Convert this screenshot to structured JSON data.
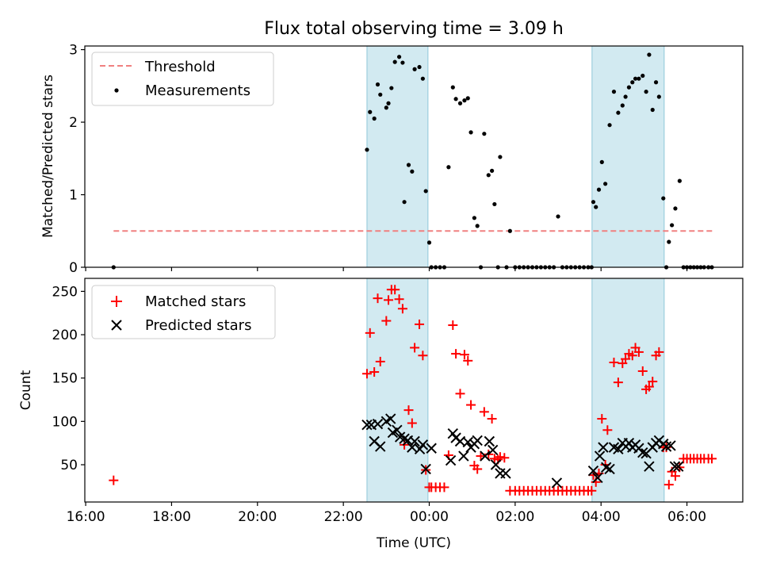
{
  "figure": {
    "title": "Flux total observing time = 3.09 h",
    "shaded_color": "#add8e6",
    "x_axis": {
      "label": "Time (UTC)",
      "range_hours": [
        15.98,
        31.3
      ],
      "ticks": [
        {
          "v": 16,
          "label": "16:00"
        },
        {
          "v": 18,
          "label": "18:00"
        },
        {
          "v": 20,
          "label": "20:00"
        },
        {
          "v": 22,
          "label": "22:00"
        },
        {
          "v": 24,
          "label": "00:00"
        },
        {
          "v": 26,
          "label": "02:00"
        },
        {
          "v": 28,
          "label": "04:00"
        },
        {
          "v": 30,
          "label": "06:00"
        }
      ],
      "shaded_spans_hours": [
        [
          22.55,
          23.97
        ],
        [
          27.79,
          29.47
        ]
      ]
    }
  },
  "chart_data": [
    {
      "type": "scatter",
      "ylabel": "Matched/Predicted stars",
      "ylim": [
        0,
        3.05
      ],
      "yticks": [
        0,
        1,
        2,
        3
      ],
      "legend": {
        "placement": "top-left",
        "entries": [
          "Threshold",
          "Measurements"
        ]
      },
      "threshold": {
        "name": "Threshold",
        "value": 0.5,
        "x_range_hours": [
          16.65,
          30.6
        ],
        "color": "#f08080"
      },
      "series": [
        {
          "name": "Measurements",
          "color": "#000000",
          "points": [
            [
              16.65,
              0.0
            ],
            [
              22.55,
              1.62
            ],
            [
              22.62,
              2.14
            ],
            [
              22.72,
              2.05
            ],
            [
              22.8,
              2.52
            ],
            [
              22.86,
              2.38
            ],
            [
              23.0,
              2.2
            ],
            [
              23.05,
              2.26
            ],
            [
              23.12,
              2.47
            ],
            [
              23.2,
              2.83
            ],
            [
              23.3,
              2.9
            ],
            [
              23.38,
              2.82
            ],
            [
              23.42,
              0.9
            ],
            [
              23.52,
              1.41
            ],
            [
              23.6,
              1.32
            ],
            [
              23.66,
              2.73
            ],
            [
              23.77,
              2.76
            ],
            [
              23.85,
              2.6
            ],
            [
              23.92,
              1.05
            ],
            [
              24.0,
              0.34
            ],
            [
              24.05,
              0.0
            ],
            [
              24.15,
              0.0
            ],
            [
              24.25,
              0.0
            ],
            [
              24.35,
              0.0
            ],
            [
              24.45,
              1.38
            ],
            [
              24.55,
              2.48
            ],
            [
              24.62,
              2.32
            ],
            [
              24.72,
              2.26
            ],
            [
              24.82,
              2.3
            ],
            [
              24.9,
              2.33
            ],
            [
              24.97,
              1.86
            ],
            [
              25.05,
              0.68
            ],
            [
              25.12,
              0.57
            ],
            [
              25.2,
              0.0
            ],
            [
              25.28,
              1.84
            ],
            [
              25.38,
              1.27
            ],
            [
              25.46,
              1.33
            ],
            [
              25.52,
              0.87
            ],
            [
              25.6,
              0.0
            ],
            [
              25.65,
              1.52
            ],
            [
              25.8,
              0.0
            ],
            [
              25.88,
              0.5
            ],
            [
              26.0,
              0.0
            ],
            [
              26.1,
              0.0
            ],
            [
              26.2,
              0.0
            ],
            [
              26.3,
              0.0
            ],
            [
              26.4,
              0.0
            ],
            [
              26.5,
              0.0
            ],
            [
              26.6,
              0.0
            ],
            [
              26.7,
              0.0
            ],
            [
              26.8,
              0.0
            ],
            [
              26.9,
              0.0
            ],
            [
              27.0,
              0.7
            ],
            [
              27.1,
              0.0
            ],
            [
              27.2,
              0.0
            ],
            [
              27.3,
              0.0
            ],
            [
              27.4,
              0.0
            ],
            [
              27.5,
              0.0
            ],
            [
              27.6,
              0.0
            ],
            [
              27.7,
              0.0
            ],
            [
              27.78,
              0.0
            ],
            [
              27.82,
              0.9
            ],
            [
              27.88,
              0.83
            ],
            [
              27.95,
              1.07
            ],
            [
              28.02,
              1.45
            ],
            [
              28.1,
              1.15
            ],
            [
              28.2,
              1.96
            ],
            [
              28.3,
              2.42
            ],
            [
              28.4,
              2.13
            ],
            [
              28.5,
              2.23
            ],
            [
              28.57,
              2.35
            ],
            [
              28.65,
              2.48
            ],
            [
              28.73,
              2.55
            ],
            [
              28.8,
              2.6
            ],
            [
              28.88,
              2.6
            ],
            [
              28.97,
              2.64
            ],
            [
              29.05,
              2.42
            ],
            [
              29.12,
              2.93
            ],
            [
              29.2,
              2.17
            ],
            [
              29.28,
              2.55
            ],
            [
              29.35,
              2.35
            ],
            [
              29.45,
              0.95
            ],
            [
              29.52,
              0.0
            ],
            [
              29.58,
              0.35
            ],
            [
              29.65,
              0.58
            ],
            [
              29.73,
              0.81
            ],
            [
              29.83,
              1.19
            ],
            [
              29.92,
              0.0
            ],
            [
              30.0,
              0.0
            ],
            [
              30.08,
              0.0
            ],
            [
              30.16,
              0.0
            ],
            [
              30.24,
              0.0
            ],
            [
              30.32,
              0.0
            ],
            [
              30.4,
              0.0
            ],
            [
              30.5,
              0.0
            ],
            [
              30.58,
              0.0
            ]
          ]
        }
      ]
    },
    {
      "type": "scatter",
      "ylabel": "Count",
      "xlabel": "Time (UTC)",
      "ylim": [
        7,
        265
      ],
      "yticks": [
        50,
        100,
        150,
        200,
        250
      ],
      "legend": {
        "placement": "top-left",
        "entries": [
          "Matched stars",
          "Predicted stars"
        ]
      },
      "series": [
        {
          "name": "Matched stars",
          "marker": "plus",
          "color": "#ff0000",
          "points": [
            [
              16.65,
              32
            ],
            [
              22.55,
              155
            ],
            [
              22.62,
              202
            ],
            [
              22.72,
              157
            ],
            [
              22.8,
              242
            ],
            [
              22.86,
              169
            ],
            [
              23.0,
              216
            ],
            [
              23.05,
              240
            ],
            [
              23.12,
              252
            ],
            [
              23.2,
              252
            ],
            [
              23.3,
              241
            ],
            [
              23.38,
              230
            ],
            [
              23.42,
              73
            ],
            [
              23.52,
              113
            ],
            [
              23.6,
              98
            ],
            [
              23.66,
              185
            ],
            [
              23.77,
              212
            ],
            [
              23.85,
              176
            ],
            [
              23.92,
              44
            ],
            [
              24.0,
              24
            ],
            [
              24.05,
              24
            ],
            [
              24.15,
              24
            ],
            [
              24.25,
              24
            ],
            [
              24.35,
              24
            ],
            [
              24.45,
              61
            ],
            [
              24.55,
              211
            ],
            [
              24.62,
              178
            ],
            [
              24.72,
              132
            ],
            [
              24.82,
              177
            ],
            [
              24.9,
              170
            ],
            [
              24.97,
              119
            ],
            [
              25.05,
              49
            ],
            [
              25.12,
              45
            ],
            [
              25.2,
              60
            ],
            [
              25.28,
              111
            ],
            [
              25.38,
              62
            ],
            [
              25.46,
              103
            ],
            [
              25.52,
              57
            ],
            [
              25.6,
              56
            ],
            [
              25.65,
              59
            ],
            [
              25.75,
              58
            ],
            [
              25.88,
              20
            ],
            [
              26.0,
              20
            ],
            [
              26.1,
              20
            ],
            [
              26.2,
              20
            ],
            [
              26.3,
              20
            ],
            [
              26.4,
              20
            ],
            [
              26.5,
              20
            ],
            [
              26.6,
              20
            ],
            [
              26.7,
              20
            ],
            [
              26.8,
              20
            ],
            [
              26.9,
              20
            ],
            [
              27.0,
              20
            ],
            [
              27.1,
              20
            ],
            [
              27.2,
              20
            ],
            [
              27.3,
              20
            ],
            [
              27.4,
              20
            ],
            [
              27.5,
              20
            ],
            [
              27.6,
              20
            ],
            [
              27.7,
              20
            ],
            [
              27.78,
              20
            ],
            [
              27.82,
              38
            ],
            [
              27.88,
              30
            ],
            [
              27.95,
              40
            ],
            [
              28.02,
              103
            ],
            [
              28.1,
              50
            ],
            [
              28.15,
              90
            ],
            [
              28.3,
              168
            ],
            [
              28.4,
              145
            ],
            [
              28.5,
              167
            ],
            [
              28.57,
              172
            ],
            [
              28.65,
              178
            ],
            [
              28.73,
              176
            ],
            [
              28.8,
              185
            ],
            [
              28.88,
              180
            ],
            [
              28.97,
              158
            ],
            [
              29.05,
              137
            ],
            [
              29.12,
              140
            ],
            [
              29.2,
              146
            ],
            [
              29.28,
              176
            ],
            [
              29.35,
              180
            ],
            [
              29.45,
              70
            ],
            [
              29.52,
              70
            ],
            [
              29.58,
              27
            ],
            [
              29.65,
              42
            ],
            [
              29.73,
              37
            ],
            [
              29.83,
              47
            ],
            [
              29.92,
              57
            ],
            [
              30.0,
              57
            ],
            [
              30.08,
              57
            ],
            [
              30.16,
              57
            ],
            [
              30.24,
              57
            ],
            [
              30.32,
              57
            ],
            [
              30.4,
              57
            ],
            [
              30.5,
              57
            ],
            [
              30.58,
              57
            ]
          ]
        },
        {
          "name": "Predicted stars",
          "marker": "x",
          "color": "#000000",
          "points": [
            [
              22.55,
              96
            ],
            [
              22.65,
              96
            ],
            [
              22.72,
              77
            ],
            [
              22.8,
              97
            ],
            [
              22.86,
              71
            ],
            [
              23.0,
              100
            ],
            [
              23.1,
              103
            ],
            [
              23.15,
              87
            ],
            [
              23.25,
              90
            ],
            [
              23.32,
              82
            ],
            [
              23.42,
              80
            ],
            [
              23.5,
              78
            ],
            [
              23.6,
              70
            ],
            [
              23.66,
              77
            ],
            [
              23.78,
              68
            ],
            [
              23.85,
              73
            ],
            [
              23.92,
              45
            ],
            [
              24.05,
              69
            ],
            [
              24.5,
              55
            ],
            [
              24.55,
              86
            ],
            [
              24.62,
              81
            ],
            [
              24.72,
              77
            ],
            [
              24.8,
              60
            ],
            [
              24.9,
              76
            ],
            [
              24.97,
              70
            ],
            [
              25.05,
              74
            ],
            [
              25.12,
              78
            ],
            [
              25.3,
              60
            ],
            [
              25.4,
              77
            ],
            [
              25.48,
              67
            ],
            [
              25.55,
              50
            ],
            [
              25.65,
              40
            ],
            [
              25.78,
              40
            ],
            [
              26.97,
              29
            ],
            [
              27.82,
              43
            ],
            [
              27.92,
              35
            ],
            [
              27.97,
              60
            ],
            [
              28.05,
              70
            ],
            [
              28.12,
              47
            ],
            [
              28.2,
              45
            ],
            [
              28.3,
              70
            ],
            [
              28.4,
              68
            ],
            [
              28.5,
              75
            ],
            [
              28.58,
              71
            ],
            [
              28.65,
              75
            ],
            [
              28.73,
              70
            ],
            [
              28.8,
              73
            ],
            [
              28.88,
              69
            ],
            [
              28.97,
              64
            ],
            [
              29.05,
              63
            ],
            [
              29.12,
              48
            ],
            [
              29.2,
              70
            ],
            [
              29.28,
              75
            ],
            [
              29.35,
              78
            ],
            [
              29.45,
              74
            ],
            [
              29.52,
              71
            ],
            [
              29.62,
              72
            ],
            [
              29.72,
              48
            ],
            [
              29.8,
              48
            ]
          ]
        }
      ]
    }
  ]
}
